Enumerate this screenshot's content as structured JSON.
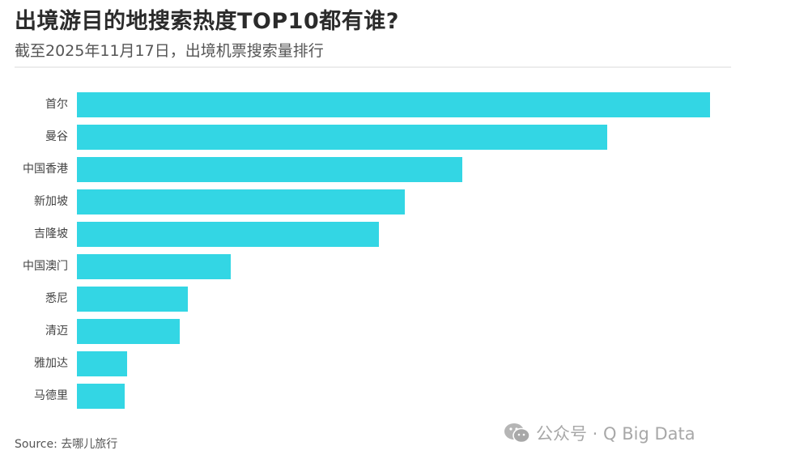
{
  "header": {
    "title": "出境游目的地搜索热度TOP10都有谁?",
    "subtitle": "截至2025年11月17日，出境机票搜索量排行"
  },
  "footer": {
    "source": "Source: 去哪儿旅行",
    "watermark": "公众号 · Q Big Data",
    "watermark_icon": "wechat-icon"
  },
  "colors": {
    "bar": "#33d6e4",
    "title": "#2b2b2b",
    "watermark": "#a8a8a8"
  },
  "chart_data": {
    "type": "bar",
    "orientation": "horizontal",
    "title": "出境游目的地搜索热度TOP10都有谁?",
    "subtitle": "截至2025年11月17日，出境机票搜索量排行",
    "xlabel": "",
    "ylabel": "",
    "value_note": "No axis or data labels shown; values are relative bar lengths (max = 100)",
    "xlim": [
      0,
      100
    ],
    "grid": false,
    "legend": null,
    "categories": [
      "首尔",
      "曼谷",
      "中国香港",
      "新加坡",
      "吉隆坡",
      "中国澳门",
      "悉尼",
      "清迈",
      "雅加达",
      "马德里"
    ],
    "values": [
      100,
      83.8,
      60.9,
      51.8,
      47.7,
      24.3,
      17.5,
      16.2,
      7.9,
      7.5
    ],
    "source": "去哪儿旅行"
  }
}
